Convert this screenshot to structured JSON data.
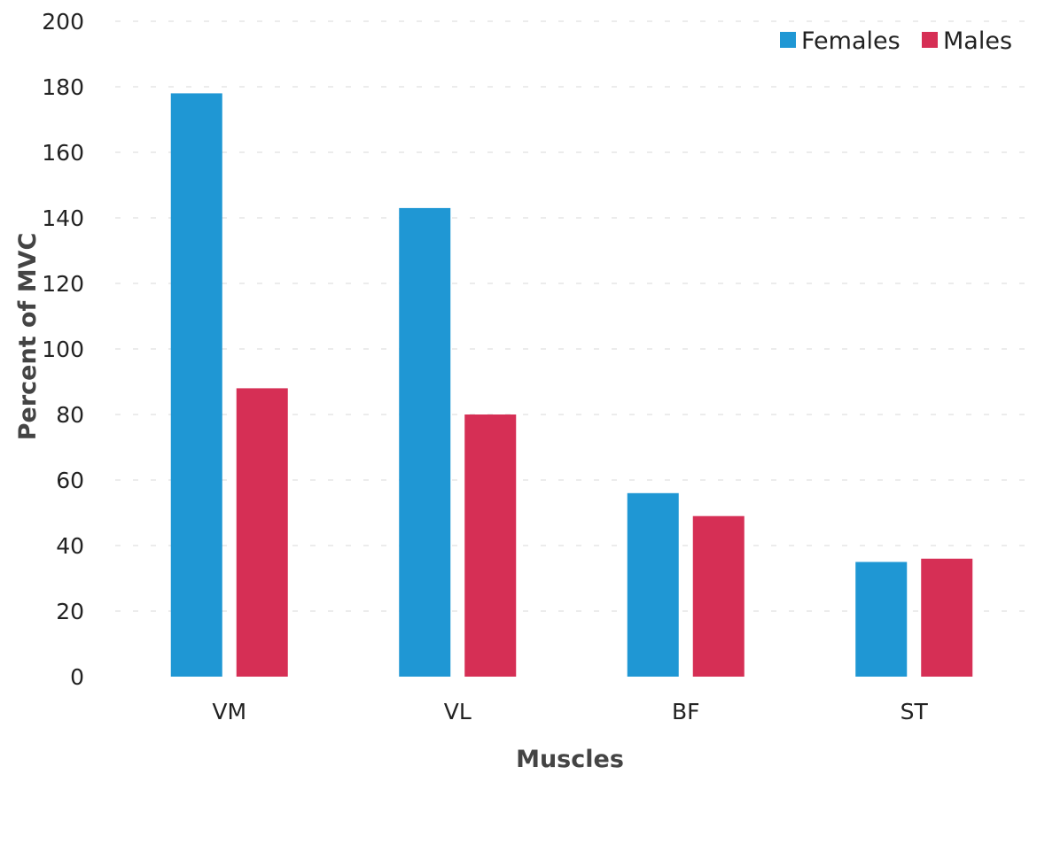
{
  "chart_data": {
    "type": "bar",
    "title": "",
    "xlabel": "Muscles",
    "ylabel": "Percent of MVC",
    "categories": [
      "VM",
      "VL",
      "BF",
      "ST"
    ],
    "series": [
      {
        "name": "Females",
        "color": "#1f97d4",
        "values": [
          178,
          143,
          56,
          35
        ]
      },
      {
        "name": "Males",
        "color": "#d62f55",
        "values": [
          88,
          80,
          49,
          36
        ]
      }
    ],
    "ylim": [
      0,
      200
    ],
    "yticks": [
      0,
      20,
      40,
      60,
      80,
      100,
      120,
      140,
      160,
      180,
      200
    ],
    "grid": true,
    "legend_position": "top-right"
  }
}
